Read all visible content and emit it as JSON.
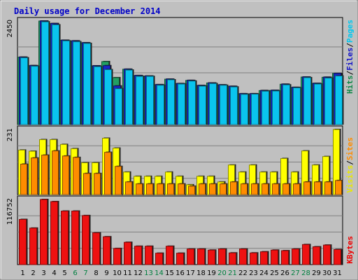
{
  "chart_data": {
    "type": "bar",
    "title": "Daily usage for December 2014",
    "categories": [
      "1",
      "2",
      "3",
      "4",
      "5",
      "6",
      "7",
      "8",
      "9",
      "10",
      "11",
      "12",
      "13",
      "14",
      "15",
      "16",
      "17",
      "18",
      "19",
      "20",
      "21",
      "22",
      "23",
      "24",
      "25",
      "26",
      "27",
      "28",
      "29",
      "30",
      "31"
    ],
    "weekend_days": [
      "6",
      "7",
      "13",
      "14",
      "20",
      "21",
      "27",
      "28"
    ],
    "panels": [
      {
        "id": "top",
        "max_label": "2450",
        "ylim": [
          0,
          2450
        ],
        "grid": true,
        "series": [
          {
            "name": "Hits",
            "color": "#22a063",
            "values": [
              1595,
              1395,
              2450,
              2390,
              1995,
              1980,
              1935,
              1390,
              1490,
              1110,
              1310,
              1160,
              1150,
              945,
              1075,
              970,
              1045,
              925,
              985,
              940,
              905,
              730,
              730,
              805,
              810,
              955,
              880,
              1125,
              975,
              1120,
              1210
            ]
          },
          {
            "name": "Files",
            "color": "#1826c8",
            "values": [
              1595,
              1395,
              2450,
              2390,
              1995,
              1980,
              1935,
              1390,
              1395,
              915,
              1310,
              1160,
              1150,
              945,
              1075,
              970,
              1045,
              925,
              985,
              940,
              905,
              730,
              730,
              805,
              810,
              955,
              880,
              1125,
              975,
              1120,
              1210
            ]
          },
          {
            "name": "Pages",
            "color": "#0ac4ee",
            "values": [
              1580,
              1380,
              2430,
              2360,
              1980,
              1960,
              1920,
              1370,
              1300,
              850,
              1290,
              1140,
              1140,
              930,
              1060,
              960,
              1030,
              910,
              970,
              930,
              890,
              715,
              720,
              790,
              795,
              940,
              870,
              1110,
              960,
              1100,
              1150
            ]
          }
        ]
      },
      {
        "id": "middle",
        "max_label": "231",
        "ylim": [
          0,
          231
        ],
        "grid": true,
        "series": [
          {
            "name": "Visits",
            "color": "#ffff00",
            "values": [
              158,
              154,
              195,
              195,
              178,
              163,
              113,
              113,
              200,
              165,
              80,
              65,
              65,
              65,
              80,
              65,
              35,
              65,
              65,
              45,
              105,
              80,
              105,
              80,
              80,
              128,
              80,
              155,
              105,
              135,
              231
            ]
          },
          {
            "name": "Sites",
            "color": "#ff8c00",
            "values": [
              108,
              130,
              140,
              155,
              137,
              132,
              75,
              75,
              150,
              100,
              45,
              38,
              38,
              38,
              38,
              38,
              30,
              38,
              38,
              38,
              45,
              38,
              38,
              38,
              38,
              38,
              38,
              45,
              45,
              45,
              50
            ]
          }
        ]
      },
      {
        "id": "bottom",
        "max_label": "116752",
        "ylim": [
          0,
          116752
        ],
        "grid": true,
        "series": [
          {
            "name": "KBytes",
            "color": "#ee1111",
            "values": [
              81000,
              65500,
              116752,
              113000,
              96000,
              96000,
              88000,
              57000,
              50000,
              29000,
              40000,
              33000,
              33000,
              20500,
              33000,
              20500,
              28000,
              28000,
              26000,
              28000,
              21000,
              28000,
              21000,
              23000,
              26000,
              25000,
              28000,
              36000,
              32000,
              35000,
              27000
            ]
          }
        ]
      }
    ],
    "legend": {
      "top": [
        "Pages",
        "/",
        "Files",
        "/",
        "Hits"
      ],
      "middle": [
        "Sites",
        "/",
        "Visits"
      ],
      "bottom": [
        "KBytes"
      ]
    },
    "legend_colors": {
      "Pages": "#00c8f0",
      "Files": "#1414c8",
      "Hits": "#108848",
      "Sites": "#ff8c00",
      "Visits": "#e8e800",
      "KBytes": "#ee0000",
      "slash": "#000000"
    },
    "colors": {
      "background": "#c0c0c0",
      "plot": "#c0c0c0",
      "title": "#0000c8",
      "weekday_label": "#000000",
      "weekend_label": "#008040"
    }
  }
}
